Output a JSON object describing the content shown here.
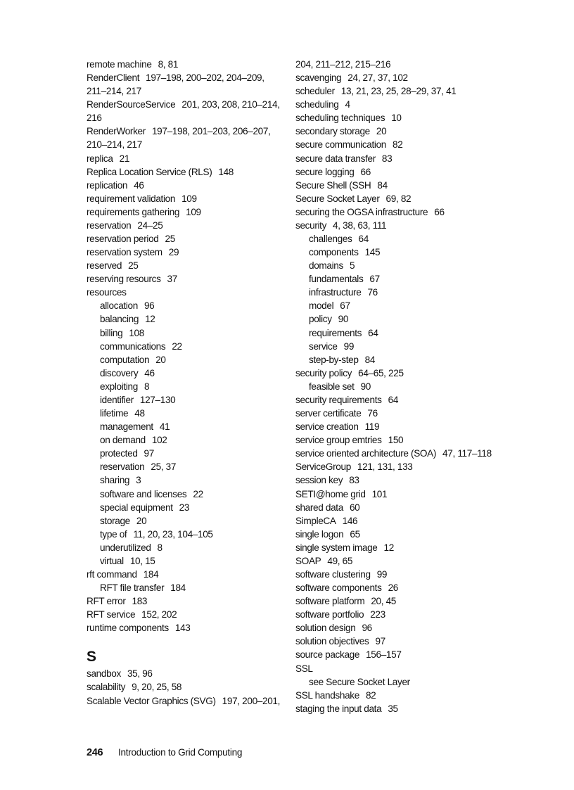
{
  "left": [
    {
      "t": "remote machine",
      "p": "8, 81"
    },
    {
      "t": "RenderClient",
      "p": "197–198, 200–202, 204–209,"
    },
    {
      "t": "211–214, 217"
    },
    {
      "t": "RenderSourceService",
      "p": "201, 203, 208, 210–214,"
    },
    {
      "t": "216"
    },
    {
      "t": "RenderWorker",
      "p": "197–198, 201–203, 206–207,"
    },
    {
      "t": "210–214, 217"
    },
    {
      "t": "replica",
      "p": "21"
    },
    {
      "t": "Replica Location Service (RLS)",
      "p": "148"
    },
    {
      "t": "replication",
      "p": "46"
    },
    {
      "t": "requirement validation",
      "p": "109"
    },
    {
      "t": "requirements gathering",
      "p": "109"
    },
    {
      "t": "reservation",
      "p": "24–25"
    },
    {
      "t": "reservation period",
      "p": "25"
    },
    {
      "t": "reservation system",
      "p": "29"
    },
    {
      "t": "reserved",
      "p": "25"
    },
    {
      "t": "reserving resourcs",
      "p": "37"
    },
    {
      "t": "resources"
    },
    {
      "t": "allocation",
      "p": "96",
      "sub": true
    },
    {
      "t": "balancing",
      "p": "12",
      "sub": true
    },
    {
      "t": "billing",
      "p": "108",
      "sub": true
    },
    {
      "t": "communications",
      "p": "22",
      "sub": true
    },
    {
      "t": "computation",
      "p": "20",
      "sub": true
    },
    {
      "t": "discovery",
      "p": "46",
      "sub": true
    },
    {
      "t": "exploiting",
      "p": "8",
      "sub": true
    },
    {
      "t": "identifier",
      "p": "127–130",
      "sub": true
    },
    {
      "t": "lifetime",
      "p": "48",
      "sub": true
    },
    {
      "t": "management",
      "p": "41",
      "sub": true
    },
    {
      "t": "on demand",
      "p": "102",
      "sub": true
    },
    {
      "t": "protected",
      "p": "97",
      "sub": true
    },
    {
      "t": "reservation",
      "p": "25, 37",
      "sub": true
    },
    {
      "t": "sharing",
      "p": "3",
      "sub": true
    },
    {
      "t": "software and licenses",
      "p": "22",
      "sub": true
    },
    {
      "t": "special equipment",
      "p": "23",
      "sub": true
    },
    {
      "t": "storage",
      "p": "20",
      "sub": true
    },
    {
      "t": "type of",
      "p": "11, 20, 23, 104–105",
      "sub": true
    },
    {
      "t": "underutilized",
      "p": "8",
      "sub": true
    },
    {
      "t": "virtual",
      "p": "10, 15",
      "sub": true
    },
    {
      "t": "rft command",
      "p": "184"
    },
    {
      "t": "RFT file transfer",
      "p": "184",
      "sub": true
    },
    {
      "t": "RFT error",
      "p": "183"
    },
    {
      "t": "RFT service",
      "p": "152, 202"
    },
    {
      "t": "runtime components",
      "p": "143"
    }
  ],
  "section_heading": "S",
  "left_s": [
    {
      "t": "sandbox",
      "p": "35, 96"
    },
    {
      "t": "scalability",
      "p": "9, 20, 25, 58"
    },
    {
      "t": "Scalable Vector Graphics (SVG)",
      "p": "197, 200–201,"
    }
  ],
  "right": [
    {
      "t": "204, 211–212, 215–216"
    },
    {
      "t": "scavenging",
      "p": "24, 27, 37, 102"
    },
    {
      "t": "scheduler",
      "p": "13, 21, 23, 25, 28–29, 37, 41"
    },
    {
      "t": "scheduling",
      "p": "4"
    },
    {
      "t": "scheduling techniques",
      "p": "10"
    },
    {
      "t": "secondary storage",
      "p": "20"
    },
    {
      "t": "secure communication",
      "p": "82"
    },
    {
      "t": "secure data transfer",
      "p": "83"
    },
    {
      "t": "secure logging",
      "p": "66"
    },
    {
      "t": "Secure Shell (SSH",
      "p": "84"
    },
    {
      "t": "Secure Socket Layer",
      "p": "69, 82"
    },
    {
      "t": "securing the OGSA infrastructure",
      "p": "66"
    },
    {
      "t": "security",
      "p": "4, 38, 63, 111"
    },
    {
      "t": "challenges",
      "p": "64",
      "sub": true
    },
    {
      "t": "components",
      "p": "145",
      "sub": true
    },
    {
      "t": "domains",
      "p": "5",
      "sub": true
    },
    {
      "t": "fundamentals",
      "p": "67",
      "sub": true
    },
    {
      "t": "infrastructure",
      "p": "76",
      "sub": true
    },
    {
      "t": "model",
      "p": "67",
      "sub": true
    },
    {
      "t": "policy",
      "p": "90",
      "sub": true
    },
    {
      "t": "requirements",
      "p": "64",
      "sub": true
    },
    {
      "t": "service",
      "p": "99",
      "sub": true
    },
    {
      "t": "step-by-step",
      "p": "84",
      "sub": true
    },
    {
      "t": "security policy",
      "p": "64–65, 225"
    },
    {
      "t": "feasible set",
      "p": "90",
      "sub": true
    },
    {
      "t": "security requirements",
      "p": "64"
    },
    {
      "t": "server certificate",
      "p": "76"
    },
    {
      "t": "service creation",
      "p": "119"
    },
    {
      "t": "service group emtries",
      "p": "150"
    },
    {
      "t": "service oriented architecture (SOA)",
      "p": "47, 117–118"
    },
    {
      "t": "ServiceGroup",
      "p": "121, 131, 133"
    },
    {
      "t": "session key",
      "p": "83"
    },
    {
      "t": "SETI@home grid",
      "p": "101"
    },
    {
      "t": "shared data",
      "p": "60"
    },
    {
      "t": "SimpleCA",
      "p": "146"
    },
    {
      "t": "single logon",
      "p": "65"
    },
    {
      "t": "single system image",
      "p": "12"
    },
    {
      "t": "SOAP",
      "p": "49, 65"
    },
    {
      "t": "software clustering",
      "p": "99"
    },
    {
      "t": "software components",
      "p": "26"
    },
    {
      "t": "software platform",
      "p": "20, 45"
    },
    {
      "t": "software portfolio",
      "p": "223"
    },
    {
      "t": "solution design",
      "p": "96"
    },
    {
      "t": "solution objectives",
      "p": "97"
    },
    {
      "t": "source package",
      "p": "156–157"
    },
    {
      "t": "SSL"
    },
    {
      "t": "see Secure Socket Layer",
      "sub": true
    },
    {
      "t": "SSL handshake",
      "p": "82"
    },
    {
      "t": "staging the input data",
      "p": "35"
    }
  ],
  "footer": {
    "page_number": "246",
    "book_title": "Introduction to Grid Computing"
  }
}
